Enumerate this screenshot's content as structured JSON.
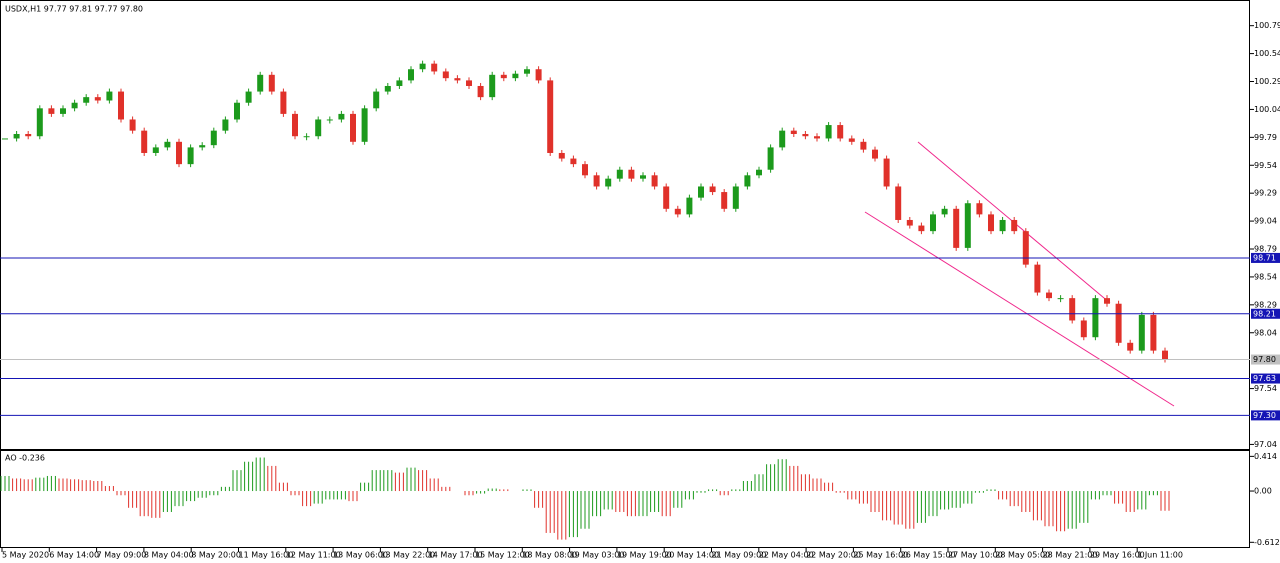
{
  "chart_data": {
    "type": "candlestick",
    "title": "USDX,H1  97.77 97.81 97.77 97.80",
    "x_labels": [
      "5 May 2020",
      "6 May 14:00",
      "7 May 09:00",
      "8 May 04:00",
      "8 May 20:00",
      "11 May 16:00",
      "12 May 11:00",
      "13 May 06:00",
      "13 May 22:00",
      "14 May 17:00",
      "15 May 12:00",
      "18 May 08:00",
      "19 May 03:00",
      "19 May 19:00",
      "20 May 14:00",
      "21 May 09:00",
      "22 May 04:00",
      "22 May 20:00",
      "25 May 16:00",
      "26 May 15:00",
      "27 May 10:00",
      "28 May 05:00",
      "28 May 21:00",
      "29 May 16:00",
      "1 Jun 11:00"
    ],
    "closes": [
      99.78,
      99.82,
      99.8,
      100.05,
      100.0,
      100.05,
      100.1,
      100.15,
      100.12,
      100.2,
      99.95,
      99.85,
      99.65,
      99.7,
      99.75,
      99.55,
      99.7,
      99.72,
      99.85,
      99.95,
      100.1,
      100.2,
      100.35,
      100.2,
      100.0,
      99.8,
      99.8,
      99.95,
      99.95,
      100.0,
      99.75,
      100.05,
      100.2,
      100.25,
      100.3,
      100.4,
      100.45,
      100.38,
      100.32,
      100.3,
      100.25,
      100.15,
      100.35,
      100.32,
      100.36,
      100.4,
      100.3,
      99.65,
      99.6,
      99.55,
      99.45,
      99.35,
      99.42,
      99.5,
      99.42,
      99.45,
      99.35,
      99.15,
      99.1,
      99.25,
      99.35,
      99.3,
      99.15,
      99.35,
      99.45,
      99.5,
      99.7,
      99.85,
      99.82,
      99.8,
      99.78,
      99.9,
      99.78,
      99.75,
      99.68,
      99.6,
      99.35,
      99.05,
      99.0,
      98.95,
      99.1,
      99.15,
      98.8,
      99.2,
      99.1,
      98.95,
      99.05,
      98.95,
      98.65,
      98.4,
      98.35,
      98.35,
      98.15,
      98.0,
      98.35,
      98.3,
      97.95,
      97.88,
      98.2,
      97.88,
      97.8
    ],
    "up_color": "#1c9a1c",
    "down_color": "#e0312a",
    "ylim": [
      96.99,
      101.02
    ],
    "yticks": [
      100.79,
      100.54,
      100.29,
      100.04,
      99.79,
      99.54,
      99.29,
      99.04,
      98.79,
      98.54,
      98.29,
      98.04,
      97.54,
      97.04
    ],
    "current_price": {
      "value": 97.8,
      "label": "97.80"
    },
    "levels": [
      98.71,
      98.21,
      {
        "value": 97.63,
        "label": "97.63"
      },
      {
        "value": 97.3,
        "label": "97.30"
      }
    ],
    "level_color": "#1515b5",
    "ao_label": "AO -0.236",
    "ao_values": [
      0.18,
      0.15,
      0.14,
      0.16,
      0.18,
      0.15,
      0.14,
      0.13,
      0.12,
      0.06,
      -0.05,
      -0.2,
      -0.3,
      -0.32,
      -0.25,
      -0.18,
      -0.12,
      -0.08,
      -0.05,
      0.05,
      0.25,
      0.35,
      0.4,
      0.3,
      0.1,
      -0.05,
      -0.18,
      -0.15,
      -0.1,
      -0.1,
      -0.12,
      0.1,
      0.25,
      0.25,
      0.22,
      0.28,
      0.25,
      0.15,
      0.05,
      0.0,
      -0.05,
      -0.03,
      0.03,
      0.02,
      0.0,
      0.02,
      -0.2,
      -0.5,
      -0.58,
      -0.55,
      -0.45,
      -0.3,
      -0.22,
      -0.25,
      -0.3,
      -0.3,
      -0.25,
      -0.3,
      -0.2,
      -0.1,
      -0.02,
      0.02,
      -0.05,
      0.02,
      0.12,
      0.2,
      0.32,
      0.38,
      0.3,
      0.2,
      0.15,
      0.1,
      -0.02,
      -0.1,
      -0.15,
      -0.25,
      -0.35,
      -0.4,
      -0.45,
      -0.38,
      -0.3,
      -0.22,
      -0.2,
      -0.15,
      -0.02,
      0.02,
      -0.1,
      -0.18,
      -0.25,
      -0.35,
      -0.42,
      -0.48,
      -0.45,
      -0.38,
      -0.1,
      -0.05,
      -0.15,
      -0.25,
      -0.22,
      -0.05,
      -0.236
    ],
    "ao_ylim": [
      -0.68,
      0.49
    ],
    "ao_yticks": [
      0.414,
      {
        "value": 0,
        "label": "0.00"
      },
      -0.612
    ]
  }
}
